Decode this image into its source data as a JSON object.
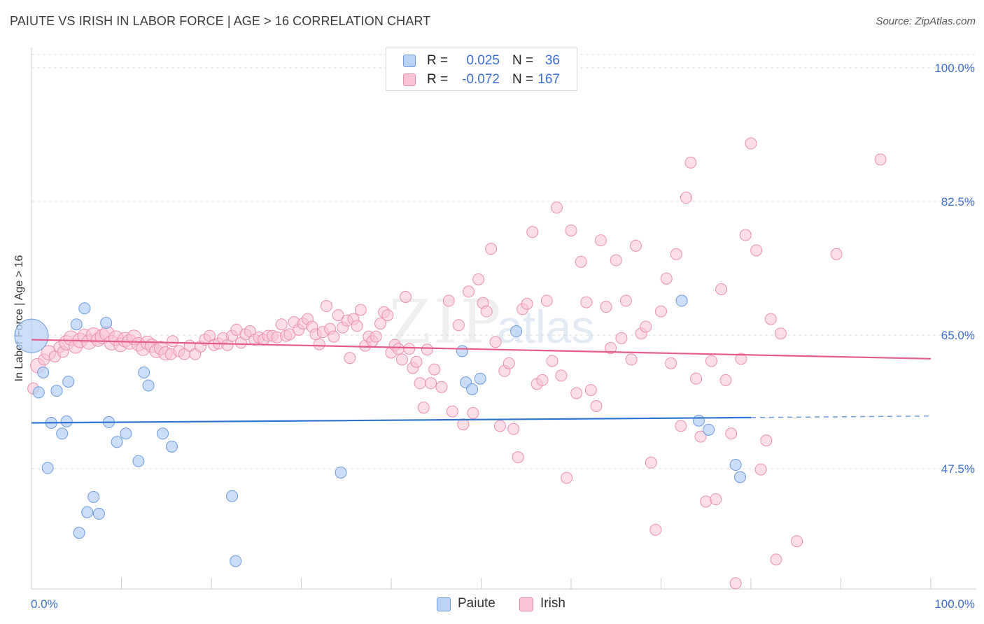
{
  "header": {
    "title": "PAIUTE VS IRISH IN LABOR FORCE | AGE > 16 CORRELATION CHART",
    "source": "Source: ZipAtlas.com"
  },
  "legend": {
    "rows": [
      {
        "r_label": "R =",
        "r_value": "0.025",
        "n_label": "N =",
        "n_value": "36"
      },
      {
        "r_label": "R =",
        "r_value": "-0.072",
        "n_label": "N =",
        "n_value": "167"
      }
    ],
    "bottom": [
      {
        "label": "Paiute"
      },
      {
        "label": "Irish"
      }
    ]
  },
  "watermark": {
    "zip": "ZIP",
    "atlas": "atlas"
  },
  "colors": {
    "paiute_fill": "#b9d2f5",
    "paiute_stroke": "#6c9be0",
    "paiute_line": "#2f74d0",
    "irish_fill": "#f8c3d4",
    "irish_stroke": "#ec8fae",
    "irish_line": "#e55b8a",
    "axis_text": "#3a6fd0",
    "grid": "#dddddd"
  },
  "chart_data": {
    "type": "scatter",
    "title": "PAIUTE VS IRISH IN LABOR FORCE | AGE > 16 CORRELATION CHART",
    "xlabel": "",
    "ylabel": "In Labor Force | Age > 16",
    "xlim": [
      0,
      100
    ],
    "ylim": [
      32,
      102
    ],
    "x_tick_labels": [
      "0.0%",
      "100.0%"
    ],
    "y_ticks": [
      47.5,
      65.0,
      82.5,
      100.0
    ],
    "y_tick_labels": [
      "47.5%",
      "65.0%",
      "82.5%",
      "100.0%"
    ],
    "grid": true,
    "series": [
      {
        "name": "Paiute",
        "r": 0.025,
        "n": 36,
        "trend": {
          "x0": 0,
          "y0": 53.5,
          "x1": 80,
          "y1": 54.2,
          "dashed_to_x": 100,
          "dashed_to_y": 54.4
        },
        "points": [
          [
            0.0,
            64.9,
            3
          ],
          [
            0.8,
            57.5,
            1
          ],
          [
            1.3,
            60.1,
            1
          ],
          [
            1.8,
            47.6,
            1
          ],
          [
            2.2,
            53.5,
            1
          ],
          [
            2.8,
            57.7,
            1
          ],
          [
            3.4,
            52.1,
            1
          ],
          [
            3.9,
            53.7,
            1
          ],
          [
            4.1,
            58.9,
            1
          ],
          [
            5.0,
            66.4,
            1
          ],
          [
            5.3,
            39.1,
            1
          ],
          [
            5.9,
            68.5,
            1
          ],
          [
            6.2,
            41.8,
            1
          ],
          [
            6.9,
            43.8,
            1
          ],
          [
            7.5,
            41.6,
            1
          ],
          [
            8.3,
            66.6,
            1
          ],
          [
            8.6,
            53.6,
            1
          ],
          [
            9.5,
            51.0,
            1
          ],
          [
            10.5,
            52.1,
            1
          ],
          [
            11.9,
            48.5,
            1
          ],
          [
            12.5,
            60.1,
            1
          ],
          [
            13.0,
            58.4,
            1
          ],
          [
            14.6,
            52.1,
            1
          ],
          [
            15.6,
            50.4,
            1
          ],
          [
            22.3,
            43.9,
            1
          ],
          [
            22.7,
            35.4,
            1
          ],
          [
            34.4,
            47.0,
            1
          ],
          [
            47.9,
            62.9,
            1
          ],
          [
            48.3,
            58.8,
            1
          ],
          [
            49.0,
            57.9,
            1
          ],
          [
            49.9,
            59.3,
            1
          ],
          [
            53.9,
            65.5,
            1
          ],
          [
            72.3,
            69.5,
            1
          ],
          [
            74.2,
            53.8,
            1
          ],
          [
            75.3,
            52.6,
            1
          ],
          [
            78.3,
            48.0,
            1
          ],
          [
            78.8,
            46.4,
            1
          ]
        ]
      },
      {
        "name": "Irish",
        "r": -0.072,
        "n": 167,
        "trend": {
          "x0": 0,
          "y0": 64.4,
          "x1": 100,
          "y1": 61.9
        },
        "points": [
          [
            0.2,
            58.0,
            1
          ],
          [
            0.7,
            61.0,
            1.3
          ],
          [
            1.4,
            61.8,
            1
          ],
          [
            1.9,
            62.7,
            1.3
          ],
          [
            2.6,
            62.2,
            1
          ],
          [
            3.1,
            63.4,
            1
          ],
          [
            3.5,
            62.8,
            1
          ],
          [
            3.9,
            64.0,
            1.3
          ],
          [
            4.4,
            64.6,
            1.3
          ],
          [
            4.9,
            63.5,
            1.2
          ],
          [
            5.4,
            64.3,
            1.3
          ],
          [
            5.9,
            64.9,
            1.2
          ],
          [
            6.4,
            64.1,
            1.3
          ],
          [
            6.9,
            65.0,
            1.3
          ],
          [
            7.4,
            64.4,
            1.2
          ],
          [
            7.9,
            64.8,
            1.3
          ],
          [
            8.4,
            65.2,
            1.3
          ],
          [
            8.9,
            64.0,
            1.3
          ],
          [
            9.4,
            64.6,
            1.3
          ],
          [
            9.9,
            63.7,
            1.2
          ],
          [
            10.4,
            64.4,
            1.3
          ],
          [
            10.9,
            64.1,
            1.3
          ],
          [
            11.4,
            64.7,
            1.3
          ],
          [
            11.9,
            63.8,
            1.2
          ],
          [
            12.4,
            63.2,
            1.2
          ],
          [
            12.9,
            64.0,
            1.2
          ],
          [
            13.4,
            63.6,
            1.2
          ],
          [
            13.9,
            62.9,
            1.2
          ],
          [
            14.4,
            63.3,
            1.2
          ],
          [
            14.9,
            62.6,
            1.2
          ],
          [
            15.5,
            62.5,
            1
          ],
          [
            15.7,
            64.2,
            1
          ],
          [
            16.4,
            62.9,
            1
          ],
          [
            17.0,
            62.5,
            1
          ],
          [
            17.6,
            63.6,
            1
          ],
          [
            18.2,
            62.5,
            1
          ],
          [
            18.8,
            63.5,
            1
          ],
          [
            19.3,
            64.4,
            1
          ],
          [
            19.8,
            64.9,
            1
          ],
          [
            20.3,
            63.7,
            1
          ],
          [
            20.8,
            63.9,
            1
          ],
          [
            21.3,
            64.6,
            1
          ],
          [
            21.8,
            63.7,
            1
          ],
          [
            22.3,
            64.9,
            1
          ],
          [
            22.8,
            65.7,
            1
          ],
          [
            23.3,
            64.0,
            1
          ],
          [
            23.8,
            65.1,
            1
          ],
          [
            24.3,
            65.5,
            1
          ],
          [
            24.8,
            64.4,
            1
          ],
          [
            25.3,
            64.7,
            1
          ],
          [
            25.8,
            64.4,
            1
          ],
          [
            26.3,
            64.9,
            1
          ],
          [
            26.8,
            64.9,
            1
          ],
          [
            27.3,
            64.7,
            1
          ],
          [
            27.8,
            66.4,
            1
          ],
          [
            28.3,
            64.9,
            1
          ],
          [
            28.7,
            65.1,
            1
          ],
          [
            29.2,
            66.7,
            1
          ],
          [
            29.7,
            65.7,
            1
          ],
          [
            30.2,
            66.5,
            1
          ],
          [
            30.7,
            67.1,
            1
          ],
          [
            31.2,
            66.1,
            1
          ],
          [
            31.6,
            65.1,
            1
          ],
          [
            32.0,
            63.8,
            1
          ],
          [
            32.4,
            65.4,
            1
          ],
          [
            32.8,
            68.8,
            1
          ],
          [
            33.2,
            65.8,
            1
          ],
          [
            33.6,
            64.8,
            1
          ],
          [
            34.1,
            67.6,
            1
          ],
          [
            34.6,
            66.0,
            1
          ],
          [
            35.1,
            66.9,
            1
          ],
          [
            35.4,
            62.0,
            1
          ],
          [
            35.8,
            67.1,
            1
          ],
          [
            36.2,
            66.2,
            1
          ],
          [
            36.6,
            68.3,
            1
          ],
          [
            37.1,
            63.6,
            1
          ],
          [
            37.5,
            64.8,
            1
          ],
          [
            37.9,
            64.2,
            1
          ],
          [
            38.3,
            64.8,
            1
          ],
          [
            38.8,
            66.5,
            1
          ],
          [
            39.2,
            68.0,
            1
          ],
          [
            39.6,
            67.6,
            1
          ],
          [
            40.0,
            62.7,
            1
          ],
          [
            40.4,
            63.7,
            1
          ],
          [
            40.8,
            63.2,
            1
          ],
          [
            41.2,
            61.8,
            1
          ],
          [
            41.6,
            70.0,
            1
          ],
          [
            42.0,
            63.2,
            1
          ],
          [
            42.4,
            60.7,
            1
          ],
          [
            42.8,
            61.5,
            1
          ],
          [
            43.2,
            58.7,
            1
          ],
          [
            43.6,
            55.5,
            1
          ],
          [
            44.0,
            63.1,
            1
          ],
          [
            44.4,
            58.7,
            1
          ],
          [
            44.8,
            60.5,
            1
          ],
          [
            45.6,
            58.2,
            1
          ],
          [
            46.4,
            69.5,
            1
          ],
          [
            46.8,
            55.0,
            1
          ],
          [
            47.5,
            66.3,
            1
          ],
          [
            48.0,
            53.3,
            1
          ],
          [
            48.6,
            70.7,
            1
          ],
          [
            49.1,
            54.8,
            1
          ],
          [
            49.7,
            72.3,
            1
          ],
          [
            50.2,
            69.2,
            1
          ],
          [
            50.6,
            68.1,
            1
          ],
          [
            51.1,
            76.3,
            1
          ],
          [
            51.6,
            64.1,
            1
          ],
          [
            52.1,
            53.1,
            1
          ],
          [
            52.6,
            60.3,
            1
          ],
          [
            53.1,
            61.3,
            1
          ],
          [
            53.6,
            52.7,
            1
          ],
          [
            54.1,
            49.0,
            1
          ],
          [
            54.6,
            68.4,
            1
          ],
          [
            55.1,
            69.1,
            1
          ],
          [
            55.7,
            78.5,
            1
          ],
          [
            56.2,
            58.6,
            1
          ],
          [
            56.8,
            59.1,
            1
          ],
          [
            57.3,
            69.5,
            1
          ],
          [
            57.9,
            61.6,
            1
          ],
          [
            58.4,
            81.7,
            1
          ],
          [
            58.9,
            59.7,
            1
          ],
          [
            59.5,
            46.3,
            1
          ],
          [
            60.0,
            78.7,
            1
          ],
          [
            60.6,
            57.4,
            1
          ],
          [
            61.1,
            74.6,
            1
          ],
          [
            61.7,
            69.3,
            1
          ],
          [
            62.2,
            57.8,
            1
          ],
          [
            62.8,
            55.7,
            1
          ],
          [
            63.3,
            77.4,
            1
          ],
          [
            63.9,
            68.7,
            1
          ],
          [
            64.4,
            63.3,
            1
          ],
          [
            65.0,
            74.8,
            1
          ],
          [
            65.6,
            64.6,
            1
          ],
          [
            66.1,
            69.5,
            1
          ],
          [
            66.7,
            61.8,
            1
          ],
          [
            67.2,
            76.7,
            1
          ],
          [
            67.8,
            65.2,
            1
          ],
          [
            68.3,
            66.1,
            1
          ],
          [
            68.9,
            48.3,
            1
          ],
          [
            69.4,
            39.5,
            1
          ],
          [
            70.0,
            68.1,
            1
          ],
          [
            70.6,
            72.4,
            1
          ],
          [
            71.1,
            61.3,
            1
          ],
          [
            71.7,
            75.6,
            1
          ],
          [
            72.2,
            53.1,
            1
          ],
          [
            72.8,
            83.0,
            1
          ],
          [
            73.3,
            87.6,
            1
          ],
          [
            73.9,
            59.3,
            1
          ],
          [
            74.4,
            51.7,
            1
          ],
          [
            75.0,
            43.2,
            1
          ],
          [
            75.6,
            61.6,
            1
          ],
          [
            76.1,
            43.5,
            1
          ],
          [
            76.7,
            71.0,
            1
          ],
          [
            77.2,
            59.1,
            1
          ],
          [
            77.8,
            52.1,
            1
          ],
          [
            78.3,
            32.5,
            1
          ],
          [
            78.9,
            61.9,
            1
          ],
          [
            79.4,
            78.1,
            1
          ],
          [
            80.0,
            90.1,
            1
          ],
          [
            80.6,
            76.1,
            1
          ],
          [
            81.1,
            47.4,
            1
          ],
          [
            81.7,
            51.2,
            1
          ],
          [
            82.2,
            67.1,
            1
          ],
          [
            82.8,
            35.6,
            1
          ],
          [
            83.3,
            65.2,
            1
          ],
          [
            85.1,
            38.0,
            1
          ],
          [
            89.5,
            75.6,
            1
          ],
          [
            94.4,
            88.0,
            1
          ]
        ]
      }
    ]
  }
}
